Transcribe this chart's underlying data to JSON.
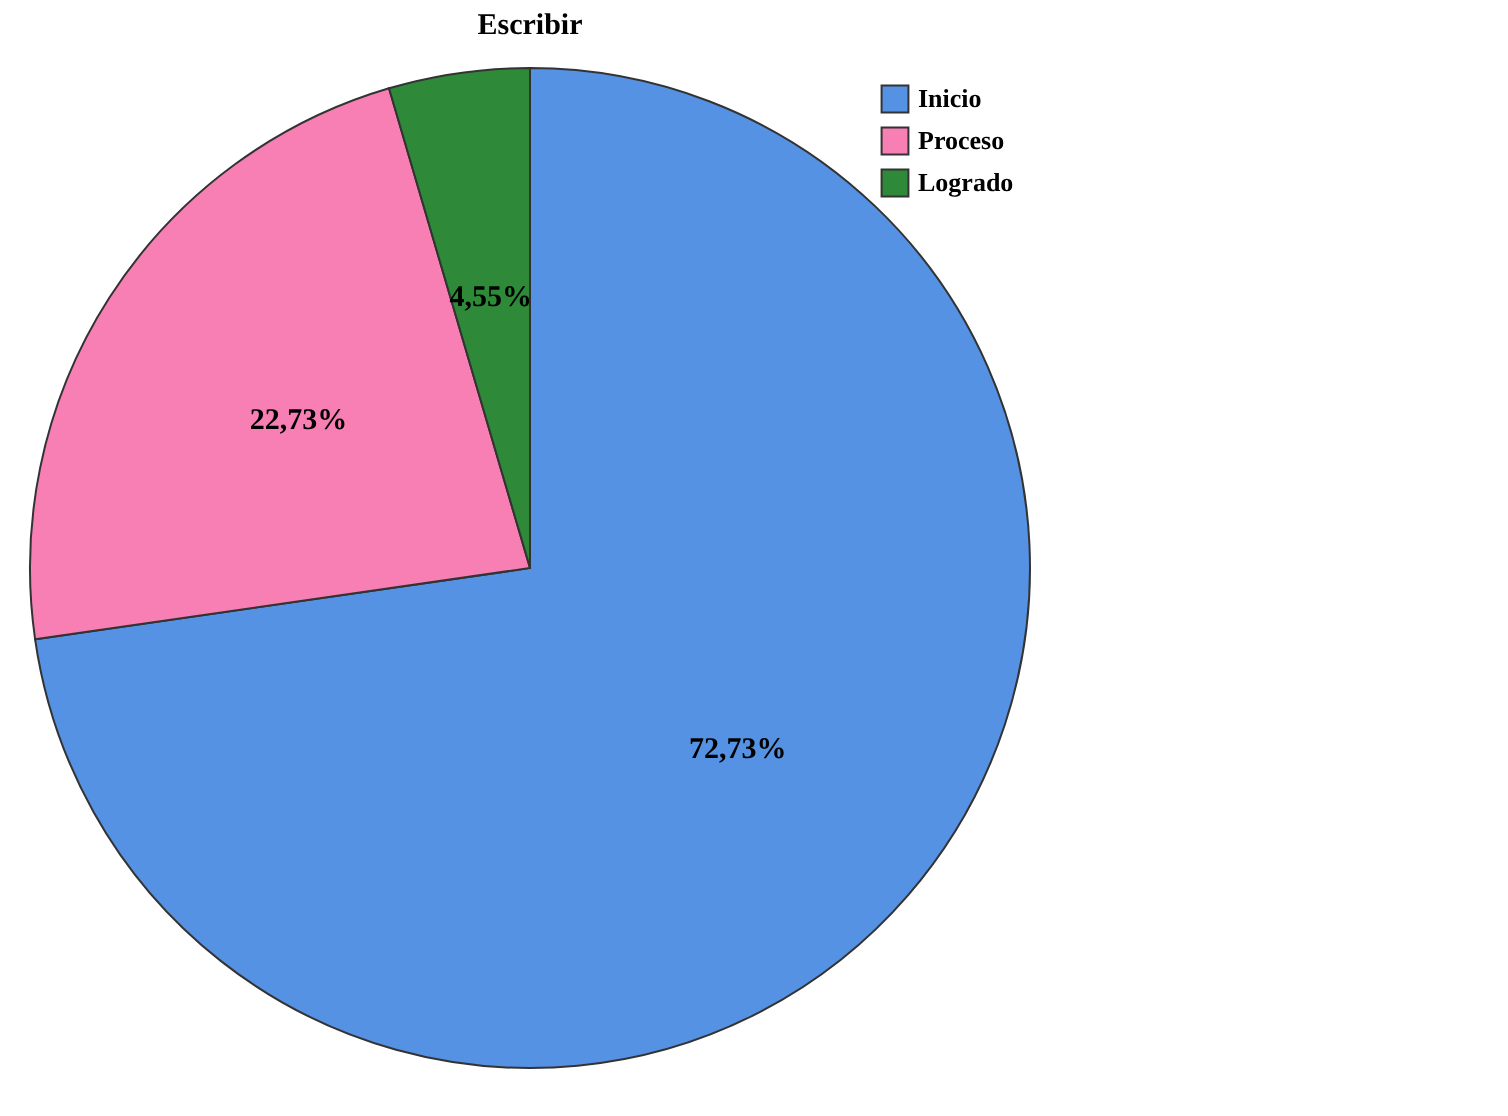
{
  "chart_data": {
    "type": "pie",
    "title": "Escribir",
    "categories": [
      "Inicio",
      "Proceso",
      "Logrado"
    ],
    "values": [
      72.73,
      22.73,
      4.55
    ],
    "colors": [
      "#5592e3",
      "#f77fb4",
      "#2e8a38"
    ],
    "value_labels": [
      "72,73%",
      "22,73%",
      "4,55%"
    ],
    "legend": "top right"
  }
}
